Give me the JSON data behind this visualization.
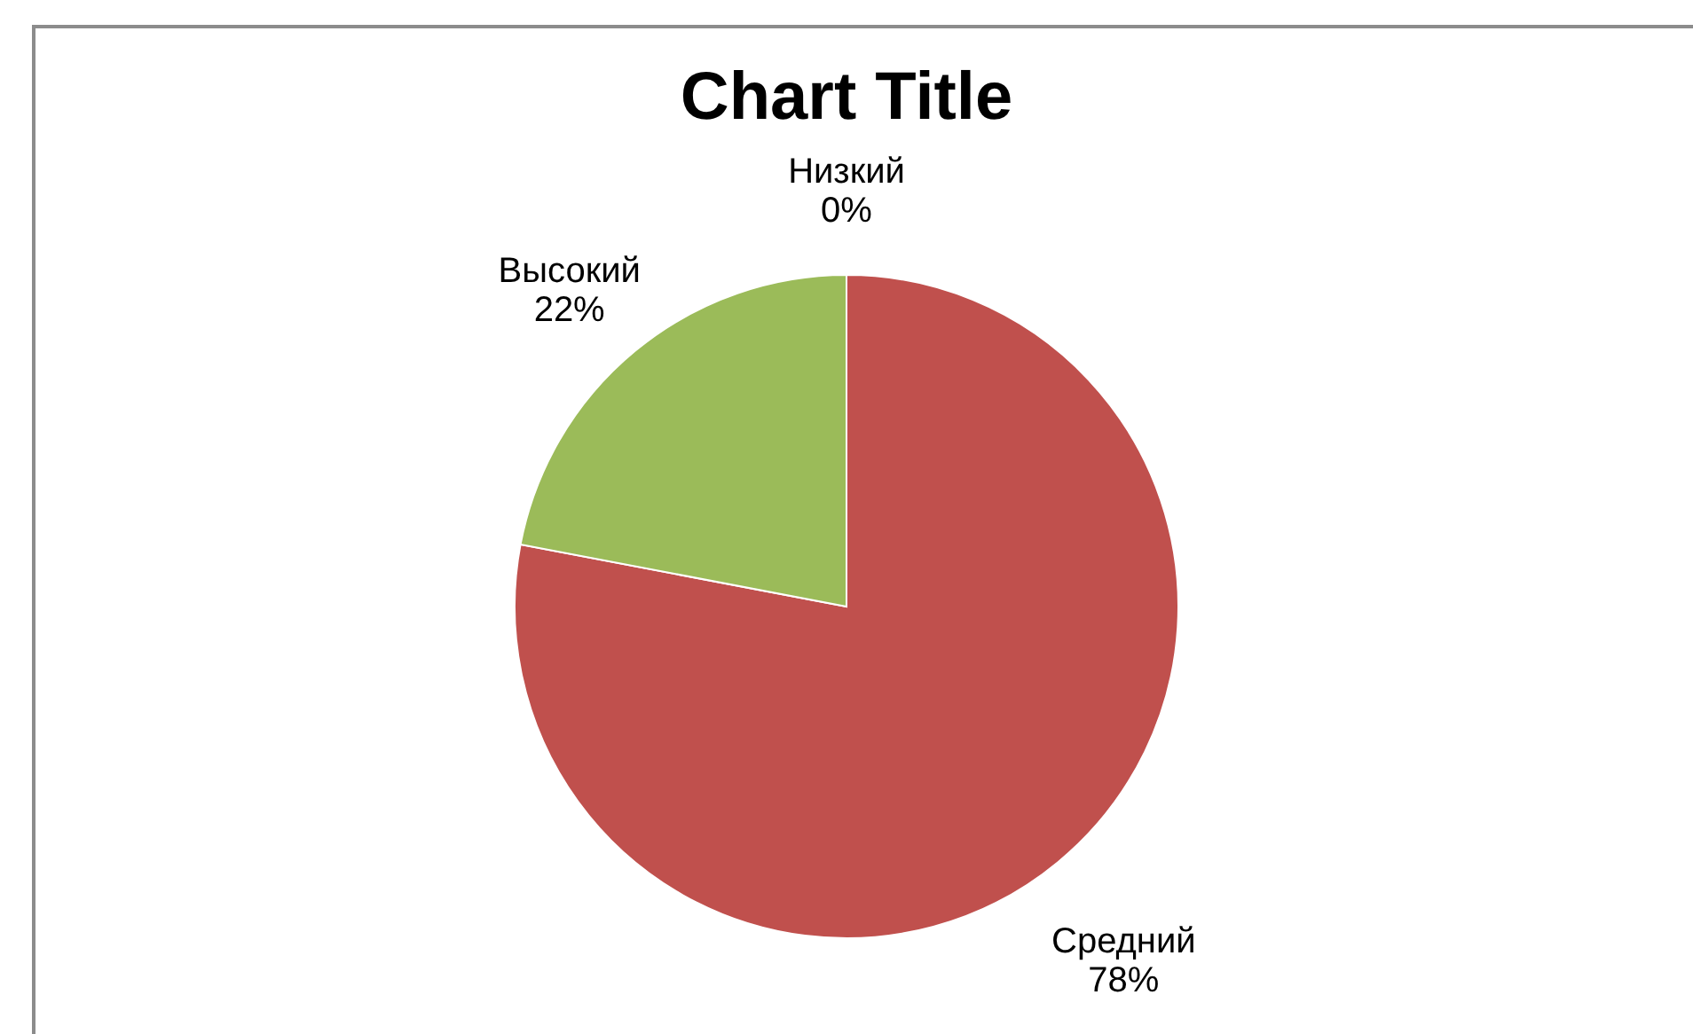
{
  "chart_data": {
    "type": "pie",
    "title": "Chart Title",
    "categories": [
      "Низкий",
      "Средний",
      "Высокий"
    ],
    "values": [
      0,
      78,
      22
    ],
    "value_labels": [
      "0%",
      "78%",
      "22%"
    ],
    "colors": [
      "#4f81bd",
      "#c0504d",
      "#9bbb59"
    ],
    "legend": false
  }
}
